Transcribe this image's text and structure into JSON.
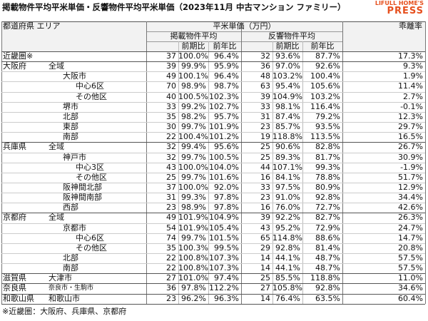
{
  "header": {
    "title": "掲載物件平均平米単価・反響物件平均平米単価（2023年11月 中古マンション ファミリー）",
    "logo_top": "LIFULL HOME'S",
    "logo_bottom": "PRESS"
  },
  "table": {
    "area_header": "都道府県 エリア",
    "price_header": "平米単価（万円）",
    "listed_header": "掲載物件平均",
    "response_header": "反響物件平均",
    "gap_header": "乖離率",
    "sub_headers": [
      "前期比",
      "前年比",
      "前期比",
      "前年比"
    ],
    "rows": [
      {
        "pref": "近畿圏※",
        "values": [
          "37",
          "100.0%",
          "96.4%",
          "32",
          "93.6%",
          "87.7%",
          "17.3%"
        ]
      },
      {
        "pref": "大阪府",
        "area": "全域",
        "values": [
          "39",
          "99.9%",
          "95.9%",
          "36",
          "97.0%",
          "92.6%",
          "9.3%"
        ]
      },
      {
        "area": "大阪市",
        "values": [
          "49",
          "100.1%",
          "96.4%",
          "48",
          "103.2%",
          "100.4%",
          "1.9%"
        ]
      },
      {
        "area": "中心6区",
        "values": [
          "70",
          "98.9%",
          "98.7%",
          "63",
          "95.4%",
          "105.6%",
          "11.4%"
        ]
      },
      {
        "area": "その他区",
        "values": [
          "40",
          "100.5%",
          "102.3%",
          "39",
          "104.9%",
          "103.2%",
          "2.7%"
        ]
      },
      {
        "area": "堺市",
        "values": [
          "33",
          "99.2%",
          "102.7%",
          "33",
          "98.1%",
          "116.4%",
          "-0.1%"
        ]
      },
      {
        "area": "北部",
        "values": [
          "35",
          "98.2%",
          "95.7%",
          "31",
          "87.4%",
          "79.2%",
          "12.3%"
        ]
      },
      {
        "area": "東部",
        "values": [
          "30",
          "99.7%",
          "101.9%",
          "23",
          "85.7%",
          "93.5%",
          "29.7%"
        ]
      },
      {
        "area": "南部",
        "values": [
          "22",
          "100.4%",
          "101.2%",
          "19",
          "118.8%",
          "113.5%",
          "16.5%"
        ]
      },
      {
        "pref": "兵庫県",
        "area": "全域",
        "values": [
          "32",
          "99.4%",
          "95.6%",
          "25",
          "90.6%",
          "82.8%",
          "26.7%"
        ]
      },
      {
        "area": "神戸市",
        "values": [
          "32",
          "99.7%",
          "100.5%",
          "25",
          "89.3%",
          "81.7%",
          "30.9%"
        ]
      },
      {
        "area": "中心3区",
        "values": [
          "43",
          "100.0%",
          "104.0%",
          "44",
          "107.1%",
          "99.3%",
          "-1.9%"
        ]
      },
      {
        "area": "その他区",
        "values": [
          "25",
          "99.7%",
          "101.6%",
          "16",
          "84.1%",
          "78.8%",
          "51.7%"
        ]
      },
      {
        "area": "阪神間北部",
        "values": [
          "37",
          "100.0%",
          "92.0%",
          "33",
          "97.5%",
          "80.9%",
          "12.9%"
        ]
      },
      {
        "area": "阪神間南部",
        "values": [
          "31",
          "99.3%",
          "97.8%",
          "23",
          "91.0%",
          "92.8%",
          "34.4%"
        ]
      },
      {
        "area": "西部",
        "values": [
          "23",
          "98.9%",
          "97.8%",
          "16",
          "76.0%",
          "72.7%",
          "42.6%"
        ]
      },
      {
        "pref": "京都府",
        "area": "全域",
        "values": [
          "49",
          "101.9%",
          "104.9%",
          "39",
          "92.2%",
          "82.7%",
          "26.3%"
        ]
      },
      {
        "area": "京都市",
        "values": [
          "54",
          "101.9%",
          "105.4%",
          "43",
          "95.2%",
          "72.9%",
          "24.7%"
        ]
      },
      {
        "area": "中心6区",
        "values": [
          "74",
          "99.7%",
          "101.5%",
          "65",
          "114.8%",
          "88.6%",
          "14.7%"
        ]
      },
      {
        "area": "その他区",
        "values": [
          "35",
          "100.3%",
          "99.5%",
          "29",
          "92.8%",
          "81.4%",
          "20.8%"
        ]
      },
      {
        "area": "北部",
        "values": [
          "22",
          "100.8%",
          "107.3%",
          "14",
          "44.1%",
          "48.7%",
          "57.5%"
        ]
      },
      {
        "area": "南部",
        "values": [
          "22",
          "100.8%",
          "107.3%",
          "14",
          "44.1%",
          "48.7%",
          "57.5%"
        ]
      },
      {
        "pref": "滋賀県",
        "area": "大津市",
        "values": [
          "27",
          "101.0%",
          "97.4%",
          "25",
          "85.5%",
          "118.8%",
          "11.0%"
        ]
      },
      {
        "pref": "奈良県",
        "area": "奈良市・生駒市",
        "values": [
          "36",
          "97.8%",
          "112.2%",
          "27",
          "105.8%",
          "92.8%",
          "34.6%"
        ]
      },
      {
        "pref": "和歌山県",
        "area": "和歌山市",
        "values": [
          "23",
          "96.2%",
          "96.3%",
          "14",
          "76.4%",
          "63.5%",
          "60.4%"
        ]
      }
    ]
  },
  "footnote": "※近畿圏：大阪府、兵庫県、京都府"
}
